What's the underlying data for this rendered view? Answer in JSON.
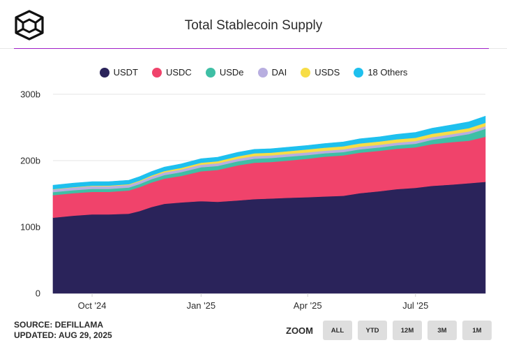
{
  "header": {
    "title": "Total Stablecoin Supply"
  },
  "footer": {
    "source": "SOURCE: DEFILLAMA",
    "updated": "UPDATED: AUG 29, 2025"
  },
  "zoom": {
    "label": "ZOOM",
    "buttons": [
      "ALL",
      "YTD",
      "12M",
      "3M",
      "1M"
    ]
  },
  "colors": {
    "accent_rule": "#a020c8",
    "grid": "#e6e6e6"
  },
  "chart_data": {
    "type": "area",
    "stacked": true,
    "title": "Total Stablecoin Supply",
    "x_start": "2024-08-29",
    "x_end": "2025-08-29",
    "x_tick_labels": [
      {
        "label": "Oct '24",
        "date": "2024-10-01"
      },
      {
        "label": "Jan '25",
        "date": "2025-01-01"
      },
      {
        "label": "Apr '25",
        "date": "2025-04-01"
      },
      {
        "label": "Jul '25",
        "date": "2025-07-01"
      }
    ],
    "y_ticks": [
      0,
      100,
      200,
      300
    ],
    "y_tick_labels": [
      "0",
      "100b",
      "200b",
      "300b"
    ],
    "ylim": [
      0,
      300
    ],
    "units": "billions USD",
    "x": [
      "2024-08-29",
      "2024-09-15",
      "2024-10-01",
      "2024-10-15",
      "2024-11-01",
      "2024-11-10",
      "2024-11-20",
      "2024-12-01",
      "2024-12-15",
      "2025-01-01",
      "2025-01-15",
      "2025-02-01",
      "2025-02-15",
      "2025-03-01",
      "2025-03-15",
      "2025-04-01",
      "2025-04-15",
      "2025-05-01",
      "2025-05-15",
      "2025-06-01",
      "2025-06-15",
      "2025-07-01",
      "2025-07-15",
      "2025-08-01",
      "2025-08-15",
      "2025-08-29"
    ],
    "series": [
      {
        "name": "USDT",
        "color": "#2a235a",
        "values": [
          114,
          117,
          119,
          119,
          120,
          124,
          130,
          135,
          137,
          139,
          138,
          140,
          142,
          143,
          144,
          145,
          146,
          147,
          151,
          154,
          157,
          159,
          162,
          164,
          166,
          168
        ]
      },
      {
        "name": "USDC",
        "color": "#f0436b",
        "values": [
          34,
          34,
          34,
          34,
          35,
          36,
          37,
          38,
          40,
          45,
          48,
          53,
          55,
          55,
          56,
          58,
          60,
          61,
          61,
          61,
          61,
          61,
          63,
          64,
          64,
          68
        ]
      },
      {
        "name": "USDe",
        "color": "#3fbfa5",
        "values": [
          4.5,
          4.5,
          4.5,
          4.5,
          4.5,
          4.7,
          5,
          5.3,
          5.6,
          6,
          6,
          6,
          6,
          6,
          6,
          5.5,
          5,
          5,
          5,
          5,
          5.2,
          5.5,
          6.5,
          8,
          10,
          12
        ]
      },
      {
        "name": "DAI",
        "color": "#b8aee0",
        "values": [
          4,
          4,
          4,
          4,
          4,
          4,
          4,
          4,
          4,
          4,
          4,
          4,
          4,
          4,
          4,
          4,
          4,
          4,
          4,
          4,
          4,
          4,
          4,
          4,
          4,
          4
        ]
      },
      {
        "name": "USDS",
        "color": "#f7dd46",
        "values": [
          0.5,
          0.6,
          0.8,
          0.9,
          1,
          1.2,
          1.5,
          2,
          2.5,
          3,
          3.2,
          3.5,
          4,
          4,
          4.2,
          4.5,
          4.6,
          4.7,
          5,
          5,
          5,
          5,
          5,
          5,
          5,
          5
        ]
      },
      {
        "name": "18 Others",
        "color": "#1ec0ee",
        "values": [
          6,
          6,
          6,
          6,
          6,
          6,
          6,
          6,
          6,
          6,
          6,
          6,
          6,
          6,
          6,
          6,
          6.2,
          6.5,
          7,
          7,
          7.5,
          8,
          8.5,
          9,
          9.5,
          10
        ]
      }
    ]
  }
}
